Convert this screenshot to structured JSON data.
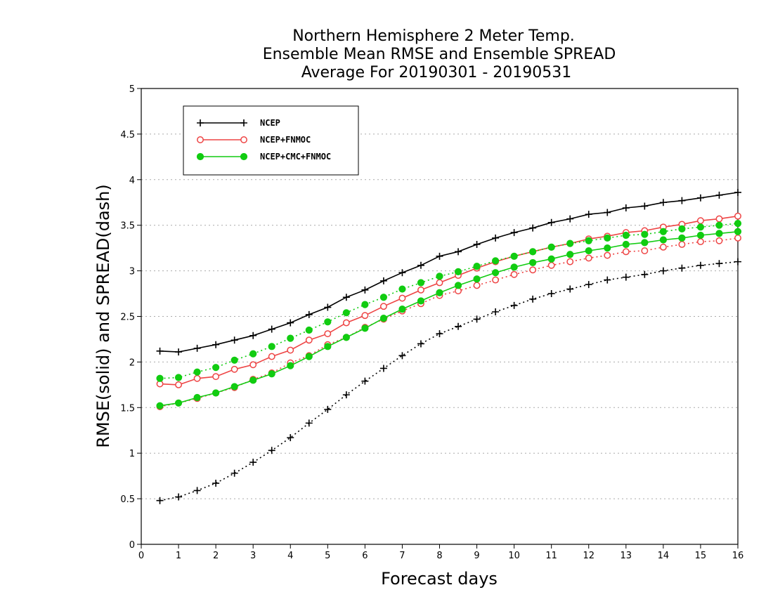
{
  "chart_data": {
    "type": "line",
    "title": [
      "Northern Hemisphere 2 Meter Temp.",
      "Ensemble Mean RMSE and Ensemble SPREAD",
      "Average For 20190301 - 20190531"
    ],
    "xlabel": "Forecast days",
    "ylabel": "RMSE(solid) and SPREAD(dash)",
    "xlim": [
      0,
      16
    ],
    "ylim": [
      0,
      5
    ],
    "xticks": [
      "0",
      "1",
      "2",
      "3",
      "4",
      "5",
      "6",
      "7",
      "8",
      "9",
      "10",
      "11",
      "12",
      "13",
      "14",
      "15",
      "16"
    ],
    "yticks": [
      "0",
      "0.5",
      "1",
      "1.5",
      "2",
      "2.5",
      "3",
      "3.5",
      "4",
      "4.5",
      "5"
    ],
    "grid": true,
    "legend_position": "top-left",
    "x": [
      0.5,
      1,
      1.5,
      2,
      2.5,
      3,
      3.5,
      4,
      4.5,
      5,
      5.5,
      6,
      6.5,
      7,
      7.5,
      8,
      8.5,
      9,
      9.5,
      10,
      10.5,
      11,
      11.5,
      12,
      12.5,
      13,
      13.5,
      14,
      14.5,
      15,
      15.5,
      16
    ],
    "series": [
      {
        "name": "NCEP",
        "color": "#000000",
        "marker": "plus",
        "rmse": [
          2.12,
          2.11,
          2.15,
          2.19,
          2.24,
          2.29,
          2.36,
          2.43,
          2.52,
          2.6,
          2.71,
          2.79,
          2.89,
          2.98,
          3.06,
          3.16,
          3.21,
          3.29,
          3.36,
          3.42,
          3.47,
          3.53,
          3.57,
          3.62,
          3.64,
          3.69,
          3.71,
          3.75,
          3.77,
          3.8,
          3.83,
          3.86
        ],
        "spread": [
          0.48,
          0.52,
          0.59,
          0.67,
          0.78,
          0.9,
          1.03,
          1.17,
          1.33,
          1.48,
          1.64,
          1.79,
          1.93,
          2.07,
          2.2,
          2.31,
          2.39,
          2.47,
          2.55,
          2.62,
          2.69,
          2.75,
          2.8,
          2.85,
          2.9,
          2.93,
          2.96,
          3.0,
          3.03,
          3.06,
          3.08,
          3.1
        ]
      },
      {
        "name": "NCEP+FNMOC",
        "color": "#ee4444",
        "marker": "open-circle",
        "rmse": [
          1.76,
          1.75,
          1.82,
          1.84,
          1.92,
          1.97,
          2.06,
          2.13,
          2.24,
          2.31,
          2.43,
          2.51,
          2.61,
          2.7,
          2.79,
          2.87,
          2.95,
          3.03,
          3.1,
          3.16,
          3.21,
          3.26,
          3.3,
          3.35,
          3.38,
          3.42,
          3.44,
          3.48,
          3.51,
          3.55,
          3.57,
          3.6
        ],
        "spread": [
          1.51,
          1.55,
          1.6,
          1.66,
          1.72,
          1.81,
          1.88,
          1.99,
          2.07,
          2.19,
          2.27,
          2.38,
          2.47,
          2.56,
          2.64,
          2.73,
          2.78,
          2.84,
          2.9,
          2.96,
          3.01,
          3.06,
          3.1,
          3.14,
          3.17,
          3.21,
          3.22,
          3.26,
          3.29,
          3.32,
          3.33,
          3.36
        ]
      },
      {
        "name": "NCEP+CMC+FNMOC",
        "color": "#11cc11",
        "marker": "filled-circle",
        "rmse": [
          1.52,
          1.55,
          1.61,
          1.66,
          1.73,
          1.8,
          1.87,
          1.96,
          2.06,
          2.17,
          2.27,
          2.37,
          2.48,
          2.58,
          2.67,
          2.76,
          2.84,
          2.91,
          2.98,
          3.04,
          3.09,
          3.13,
          3.18,
          3.22,
          3.25,
          3.29,
          3.31,
          3.34,
          3.36,
          3.39,
          3.41,
          3.43
        ],
        "spread": [
          1.82,
          1.83,
          1.89,
          1.94,
          2.02,
          2.09,
          2.17,
          2.26,
          2.35,
          2.44,
          2.54,
          2.63,
          2.71,
          2.8,
          2.87,
          2.94,
          2.99,
          3.05,
          3.11,
          3.16,
          3.21,
          3.26,
          3.3,
          3.33,
          3.36,
          3.39,
          3.4,
          3.43,
          3.46,
          3.48,
          3.5,
          3.52
        ]
      }
    ]
  }
}
